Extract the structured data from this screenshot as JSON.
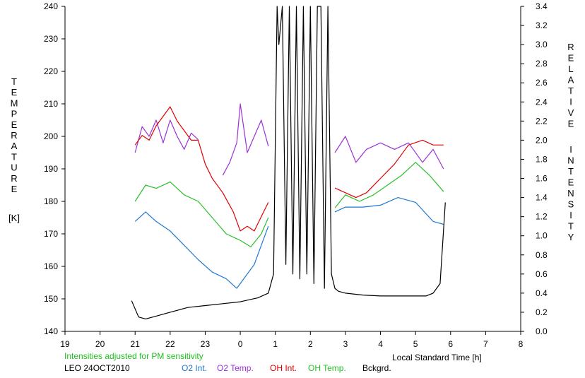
{
  "chart_data": {
    "type": "line",
    "left_axis": {
      "label_letters": [
        "T",
        "E",
        "M",
        "P",
        "E",
        "R",
        "A",
        "T",
        "U",
        "R",
        "E"
      ],
      "unit": "[K]",
      "ticks": [
        "240",
        "230",
        "220",
        "210",
        "200",
        "190",
        "180",
        "170",
        "160",
        "150",
        "140"
      ],
      "ylim": [
        140,
        240
      ]
    },
    "right_axis": {
      "label_letters_1": [
        "R",
        "E",
        "L",
        "A",
        "T",
        "I",
        "V",
        "E"
      ],
      "label_letters_2": [
        "I",
        "N",
        "T",
        "E",
        "N",
        "S",
        "I",
        "T",
        "Y"
      ],
      "ticks": [
        "3.4",
        "3.2",
        "3.0",
        "2.8",
        "2.6",
        "2.4",
        "2.2",
        "2.0",
        "1.8",
        "1.6",
        "1.4",
        "1.2",
        "1.0",
        "0.8",
        "0.6",
        "0.4",
        "0.2",
        "0.0"
      ],
      "ylim": [
        0.0,
        3.4
      ]
    },
    "x_axis": {
      "label": "Local Standard Time [h]",
      "ticks": [
        "19",
        "20",
        "21",
        "22",
        "23",
        "0",
        "1",
        "2",
        "3",
        "4",
        "5",
        "6",
        "7",
        "8"
      ],
      "xlim": [
        19,
        32
      ]
    },
    "note": "Intensities adjusted for PM sensitivity",
    "station": "LEO 24OCT2010",
    "colors": {
      "o2_int": "#1e78d2",
      "o2_temp": "#9b30d8",
      "oh_int": "#e00000",
      "oh_temp": "#28c028",
      "bckgrd": "#000000",
      "note": "#1ec01e"
    },
    "series": [
      {
        "name": "O2 Int.",
        "axis": "right",
        "x": [
          21.0,
          21.3,
          21.6,
          22.0,
          22.4,
          22.8,
          23.2,
          23.6,
          23.9,
          24.1,
          24.4,
          24.6,
          24.8
        ],
        "y": [
          1.15,
          1.25,
          1.15,
          1.05,
          0.9,
          0.75,
          0.62,
          0.55,
          0.45,
          0.55,
          0.7,
          0.9,
          1.1
        ]
      },
      {
        "name": "O2 Int.",
        "axis": "right",
        "x": [
          26.7,
          27.0,
          27.5,
          28.0,
          28.5,
          29.0,
          29.5,
          29.8
        ],
        "y": [
          1.25,
          1.3,
          1.3,
          1.32,
          1.4,
          1.35,
          1.15,
          1.12
        ]
      },
      {
        "name": "O2 Temp.",
        "axis": "left",
        "x": [
          21.0,
          21.2,
          21.4,
          21.6,
          21.8,
          22.0,
          22.2,
          22.4,
          22.6,
          22.8
        ],
        "y": [
          195,
          203,
          200,
          205,
          198,
          205,
          200,
          196,
          201,
          199
        ]
      },
      {
        "name": "O2 Temp.",
        "axis": "left",
        "x": [
          23.5,
          23.7,
          23.9,
          24.0,
          24.2,
          24.4,
          24.6,
          24.8
        ],
        "y": [
          188,
          192,
          198,
          210,
          195,
          200,
          205,
          197
        ]
      },
      {
        "name": "O2 Temp.",
        "axis": "left",
        "x": [
          26.7,
          27.0,
          27.3,
          27.6,
          28.0,
          28.4,
          28.8,
          29.2,
          29.5,
          29.8
        ],
        "y": [
          195,
          200,
          192,
          196,
          198,
          196,
          198,
          192,
          196,
          190
        ]
      },
      {
        "name": "OH Int.",
        "axis": "right",
        "x": [
          21.0,
          21.2,
          21.4,
          21.6,
          21.8,
          22.0,
          22.2,
          22.4,
          22.6,
          22.8,
          23.0,
          23.2,
          23.5,
          23.8,
          24.0,
          24.2,
          24.4,
          24.6,
          24.8
        ],
        "y": [
          1.95,
          2.05,
          2.0,
          2.15,
          2.25,
          2.35,
          2.2,
          2.1,
          2.0,
          2.0,
          1.75,
          1.6,
          1.45,
          1.25,
          1.05,
          1.1,
          1.05,
          1.2,
          1.35
        ]
      },
      {
        "name": "OH Int.",
        "axis": "right",
        "x": [
          26.7,
          27.0,
          27.3,
          27.6,
          28.0,
          28.4,
          28.8,
          29.2,
          29.5,
          29.8
        ],
        "y": [
          1.5,
          1.45,
          1.4,
          1.45,
          1.6,
          1.75,
          1.95,
          2.0,
          1.95,
          1.95
        ]
      },
      {
        "name": "OH Temp.",
        "axis": "left",
        "x": [
          21.0,
          21.3,
          21.6,
          22.0,
          22.4,
          22.8,
          23.2,
          23.6,
          24.0,
          24.3,
          24.6,
          24.8
        ],
        "y": [
          180,
          185,
          184,
          186,
          182,
          180,
          175,
          170,
          168,
          166,
          170,
          175
        ]
      },
      {
        "name": "OH Temp.",
        "axis": "left",
        "x": [
          26.7,
          27.0,
          27.4,
          27.8,
          28.2,
          28.6,
          29.0,
          29.4,
          29.8
        ],
        "y": [
          178,
          182,
          180,
          182,
          185,
          188,
          192,
          188,
          183
        ]
      },
      {
        "name": "Bckgrd.",
        "axis": "right",
        "x": [
          20.9,
          21.1,
          21.3,
          21.6,
          22.0,
          22.5,
          23.0,
          23.5,
          24.0,
          24.5,
          24.8,
          24.95,
          25.05,
          25.1,
          25.2,
          25.3,
          25.4,
          25.5,
          25.6,
          25.7,
          25.8,
          25.9,
          26.0,
          26.1,
          26.2,
          26.3,
          26.4,
          26.5,
          26.6,
          26.7,
          26.8,
          27.0,
          27.5,
          28.0,
          28.5,
          29.0,
          29.3,
          29.5,
          29.7,
          29.85
        ],
        "y": [
          0.32,
          0.15,
          0.13,
          0.16,
          0.2,
          0.25,
          0.27,
          0.29,
          0.31,
          0.35,
          0.4,
          0.6,
          3.4,
          3.0,
          3.4,
          0.7,
          3.4,
          0.6,
          3.4,
          0.55,
          3.4,
          0.6,
          3.4,
          0.5,
          3.4,
          3.4,
          0.45,
          3.4,
          0.6,
          0.45,
          0.42,
          0.4,
          0.38,
          0.37,
          0.37,
          0.37,
          0.37,
          0.4,
          0.5,
          1.35
        ]
      }
    ],
    "grid": false,
    "legend_position": "bottom"
  }
}
